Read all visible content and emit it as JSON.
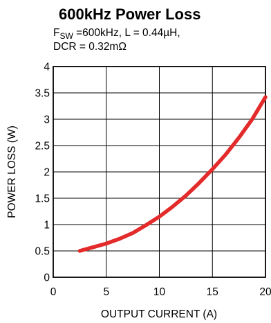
{
  "chart_data": {
    "type": "line",
    "title": "600kHz Power Loss",
    "subtitle": {
      "line1_prefix": "F",
      "line1_subscript": "SW",
      "line1_rest": " =600kHz, L = 0.44µH,",
      "line2": "DCR = 0.32mΩ"
    },
    "xlabel": "OUTPUT CURRENT (A)",
    "ylabel": "POWER LOSS (W)",
    "xlim": [
      0,
      20
    ],
    "ylim": [
      0,
      4
    ],
    "xticks": [
      0,
      5,
      10,
      15,
      20
    ],
    "yticks": [
      0,
      0.5,
      1,
      1.5,
      2,
      2.5,
      3,
      3.5,
      4
    ],
    "xtick_labels": [
      "0",
      "5",
      "10",
      "15",
      "20"
    ],
    "ytick_labels": [
      "0",
      "0.5",
      "1",
      "1.5",
      "2",
      "2.5",
      "3",
      "3.5",
      "4"
    ],
    "grid": true,
    "series": [
      {
        "color": "#e32b2b",
        "x": [
          2.5,
          3.75,
          5,
          6.25,
          7.5,
          8.75,
          10,
          11.25,
          12.5,
          13.75,
          15,
          16.25,
          17.5,
          18.75,
          20
        ],
        "y": [
          0.5,
          0.57,
          0.64,
          0.73,
          0.84,
          0.99,
          1.15,
          1.34,
          1.55,
          1.79,
          2.05,
          2.33,
          2.65,
          3.0,
          3.42
        ]
      }
    ]
  }
}
